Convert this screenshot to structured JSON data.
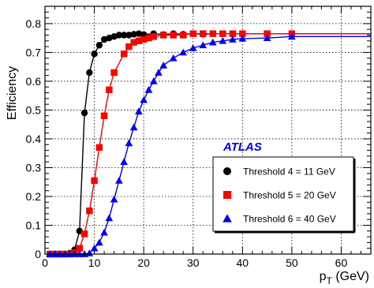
{
  "chart_data": {
    "type": "scatter",
    "xlabel": "p_T (GeV)",
    "xlabel_main": "p",
    "xlabel_sub": "T",
    "xlabel_unit": " (GeV)",
    "ylabel": "Efficiency",
    "xlim": [
      0,
      66
    ],
    "ylim": [
      0,
      0.86
    ],
    "xticks": [
      "0",
      "10",
      "20",
      "30",
      "40",
      "50",
      "60"
    ],
    "yticks": [
      "0",
      "0.1",
      "0.2",
      "0.3",
      "0.4",
      "0.5",
      "0.6",
      "0.7",
      "0.8"
    ],
    "grid": true,
    "legend_position": "bottom-right",
    "annotation": "ATLAS",
    "series": [
      {
        "name": "Threshold 4 = 11 GeV",
        "marker": "circle",
        "color": "#000000",
        "x": [
          1,
          2,
          3,
          4,
          5,
          6,
          7,
          8,
          9,
          10,
          11,
          12,
          13,
          14,
          15,
          16,
          17,
          18,
          19,
          20,
          22,
          24,
          26,
          28,
          30,
          32,
          34,
          36,
          38,
          40,
          45,
          50
        ],
        "y": [
          0.0,
          0.0,
          0.0,
          0.0,
          0.003,
          0.015,
          0.08,
          0.49,
          0.63,
          0.695,
          0.725,
          0.745,
          0.75,
          0.755,
          0.76,
          0.76,
          0.76,
          0.763,
          0.765,
          0.762,
          0.765,
          0.762,
          0.765,
          0.763,
          0.765,
          0.763,
          0.765,
          0.765,
          0.765,
          0.765,
          0.765,
          0.765
        ]
      },
      {
        "name": "Threshold 5 = 20 GeV",
        "marker": "square",
        "color": "#ff0000",
        "x": [
          1,
          2,
          3,
          4,
          5,
          6,
          7,
          8,
          9,
          10,
          11,
          12,
          13,
          14,
          16,
          17,
          18,
          19,
          20,
          21,
          22,
          24,
          26,
          28,
          30,
          32,
          34,
          36,
          38,
          40,
          45,
          50
        ],
        "y": [
          0.0,
          0.0,
          0.0,
          0.0,
          0.0,
          0.005,
          0.02,
          0.07,
          0.15,
          0.255,
          0.37,
          0.48,
          0.57,
          0.63,
          0.695,
          0.72,
          0.735,
          0.74,
          0.745,
          0.75,
          0.755,
          0.76,
          0.76,
          0.76,
          0.765,
          0.765,
          0.765,
          0.765,
          0.765,
          0.765,
          0.765,
          0.765
        ]
      },
      {
        "name": "Threshold 6 = 40 GeV",
        "marker": "triangle",
        "color": "#0000ff",
        "x": [
          1,
          2,
          3,
          4,
          5,
          6,
          7,
          8,
          9,
          10,
          11,
          12,
          13,
          14,
          15,
          16,
          17,
          18,
          19,
          20,
          21,
          22,
          23,
          24,
          26,
          28,
          30,
          32,
          34,
          36,
          38,
          40,
          45,
          50
        ],
        "y": [
          0.0,
          0.0,
          0.0,
          0.0,
          0.0,
          0.0,
          0.0,
          0.0,
          0.003,
          0.02,
          0.04,
          0.075,
          0.125,
          0.19,
          0.255,
          0.32,
          0.385,
          0.44,
          0.495,
          0.535,
          0.57,
          0.6,
          0.63,
          0.655,
          0.68,
          0.7,
          0.715,
          0.725,
          0.735,
          0.74,
          0.745,
          0.748,
          0.75,
          0.755
        ]
      }
    ]
  }
}
